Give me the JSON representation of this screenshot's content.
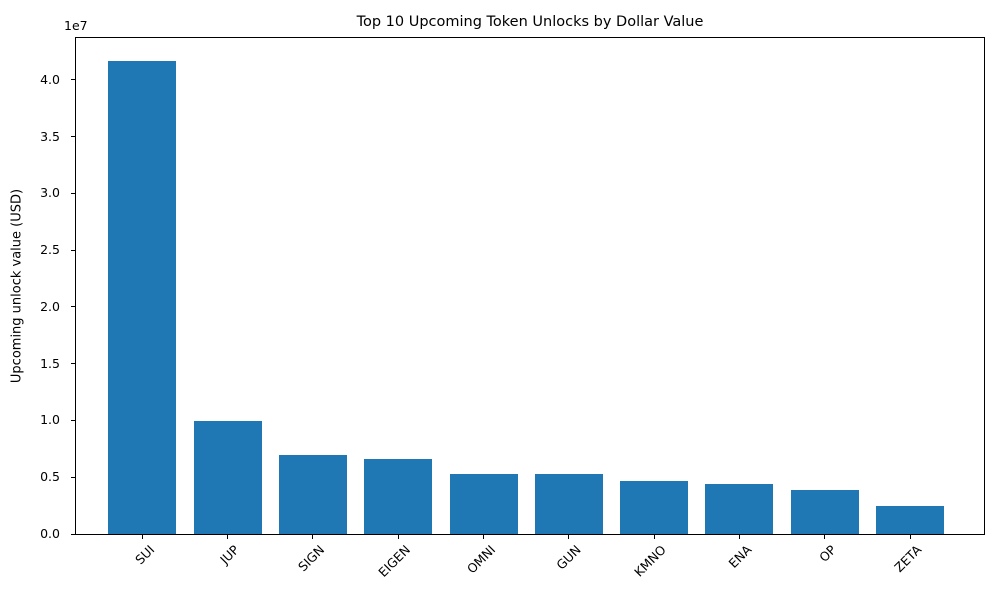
{
  "chart_data": {
    "type": "bar",
    "title": "Top 10 Upcoming Token Unlocks by Dollar Value",
    "xlabel": "",
    "ylabel": "Upcoming unlock value (USD)",
    "y_offset_text": "1e7",
    "categories": [
      "SUI",
      "JUP",
      "SIGN",
      "EIGEN",
      "OMNI",
      "GUN",
      "KMNO",
      "ENA",
      "OP",
      "ZETA"
    ],
    "values": [
      41700000,
      10000000,
      6950000,
      6600000,
      5300000,
      5250000,
      4650000,
      4450000,
      3900000,
      2500000
    ],
    "bar_color": "#1f77b4",
    "ylim": [
      0,
      43700000
    ],
    "yticks": [
      0,
      5000000,
      10000000,
      15000000,
      20000000,
      25000000,
      30000000,
      35000000,
      40000000
    ],
    "ytick_labels": [
      "0.0",
      "0.5",
      "1.0",
      "1.5",
      "2.0",
      "2.5",
      "3.0",
      "3.5",
      "4.0"
    ],
    "x_tick_rotation_deg": 45,
    "grid": false,
    "legend_position": "none"
  }
}
